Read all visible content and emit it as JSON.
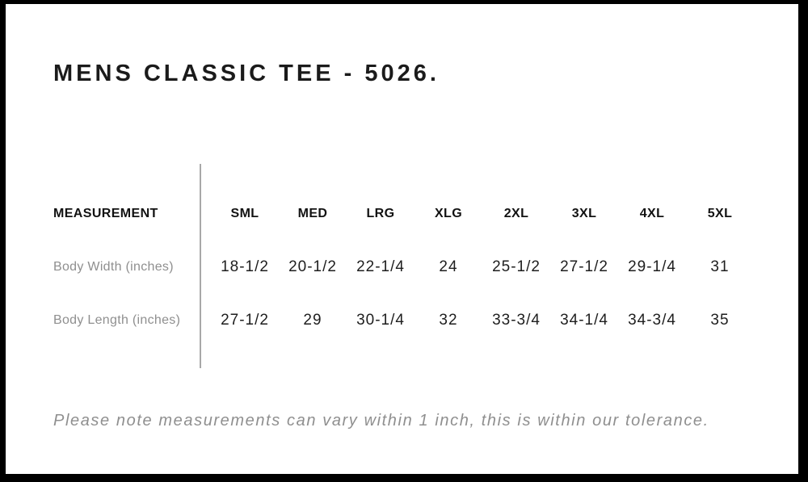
{
  "title": "MENS CLASSIC TEE - 5026.",
  "table": {
    "measurement_header": "MEASUREMENT",
    "sizes": [
      "SML",
      "MED",
      "LRG",
      "XLG",
      "2XL",
      "3XL",
      "4XL",
      "5XL"
    ],
    "rows": [
      {
        "label": "Body Width (inches)",
        "values": [
          "18-1/2",
          "20-1/2",
          "22-1/4",
          "24",
          "25-1/2",
          "27-1/2",
          "29-1/4",
          "31"
        ]
      },
      {
        "label": "Body Length (inches)",
        "values": [
          "27-1/2",
          "29",
          "30-1/4",
          "32",
          "33-3/4",
          "34-1/4",
          "34-3/4",
          "35"
        ]
      }
    ]
  },
  "note": "Please note measurements can vary within 1 inch, this is within our tolerance.",
  "chart_data": {
    "type": "table",
    "title": "MENS CLASSIC TEE - 5026.",
    "columns": [
      "MEASUREMENT",
      "SML",
      "MED",
      "LRG",
      "XLG",
      "2XL",
      "3XL",
      "4XL",
      "5XL"
    ],
    "rows": [
      [
        "Body Width (inches)",
        "18-1/2",
        "20-1/2",
        "22-1/4",
        "24",
        "25-1/2",
        "27-1/2",
        "29-1/4",
        "31"
      ],
      [
        "Body Length (inches)",
        "27-1/2",
        "29",
        "30-1/4",
        "32",
        "33-3/4",
        "34-1/4",
        "34-3/4",
        "35"
      ]
    ]
  },
  "colors": {
    "text": "#1b1b1b",
    "muted": "#8f8f8f",
    "divider": "#a8a8a8",
    "frame": "#000000"
  }
}
